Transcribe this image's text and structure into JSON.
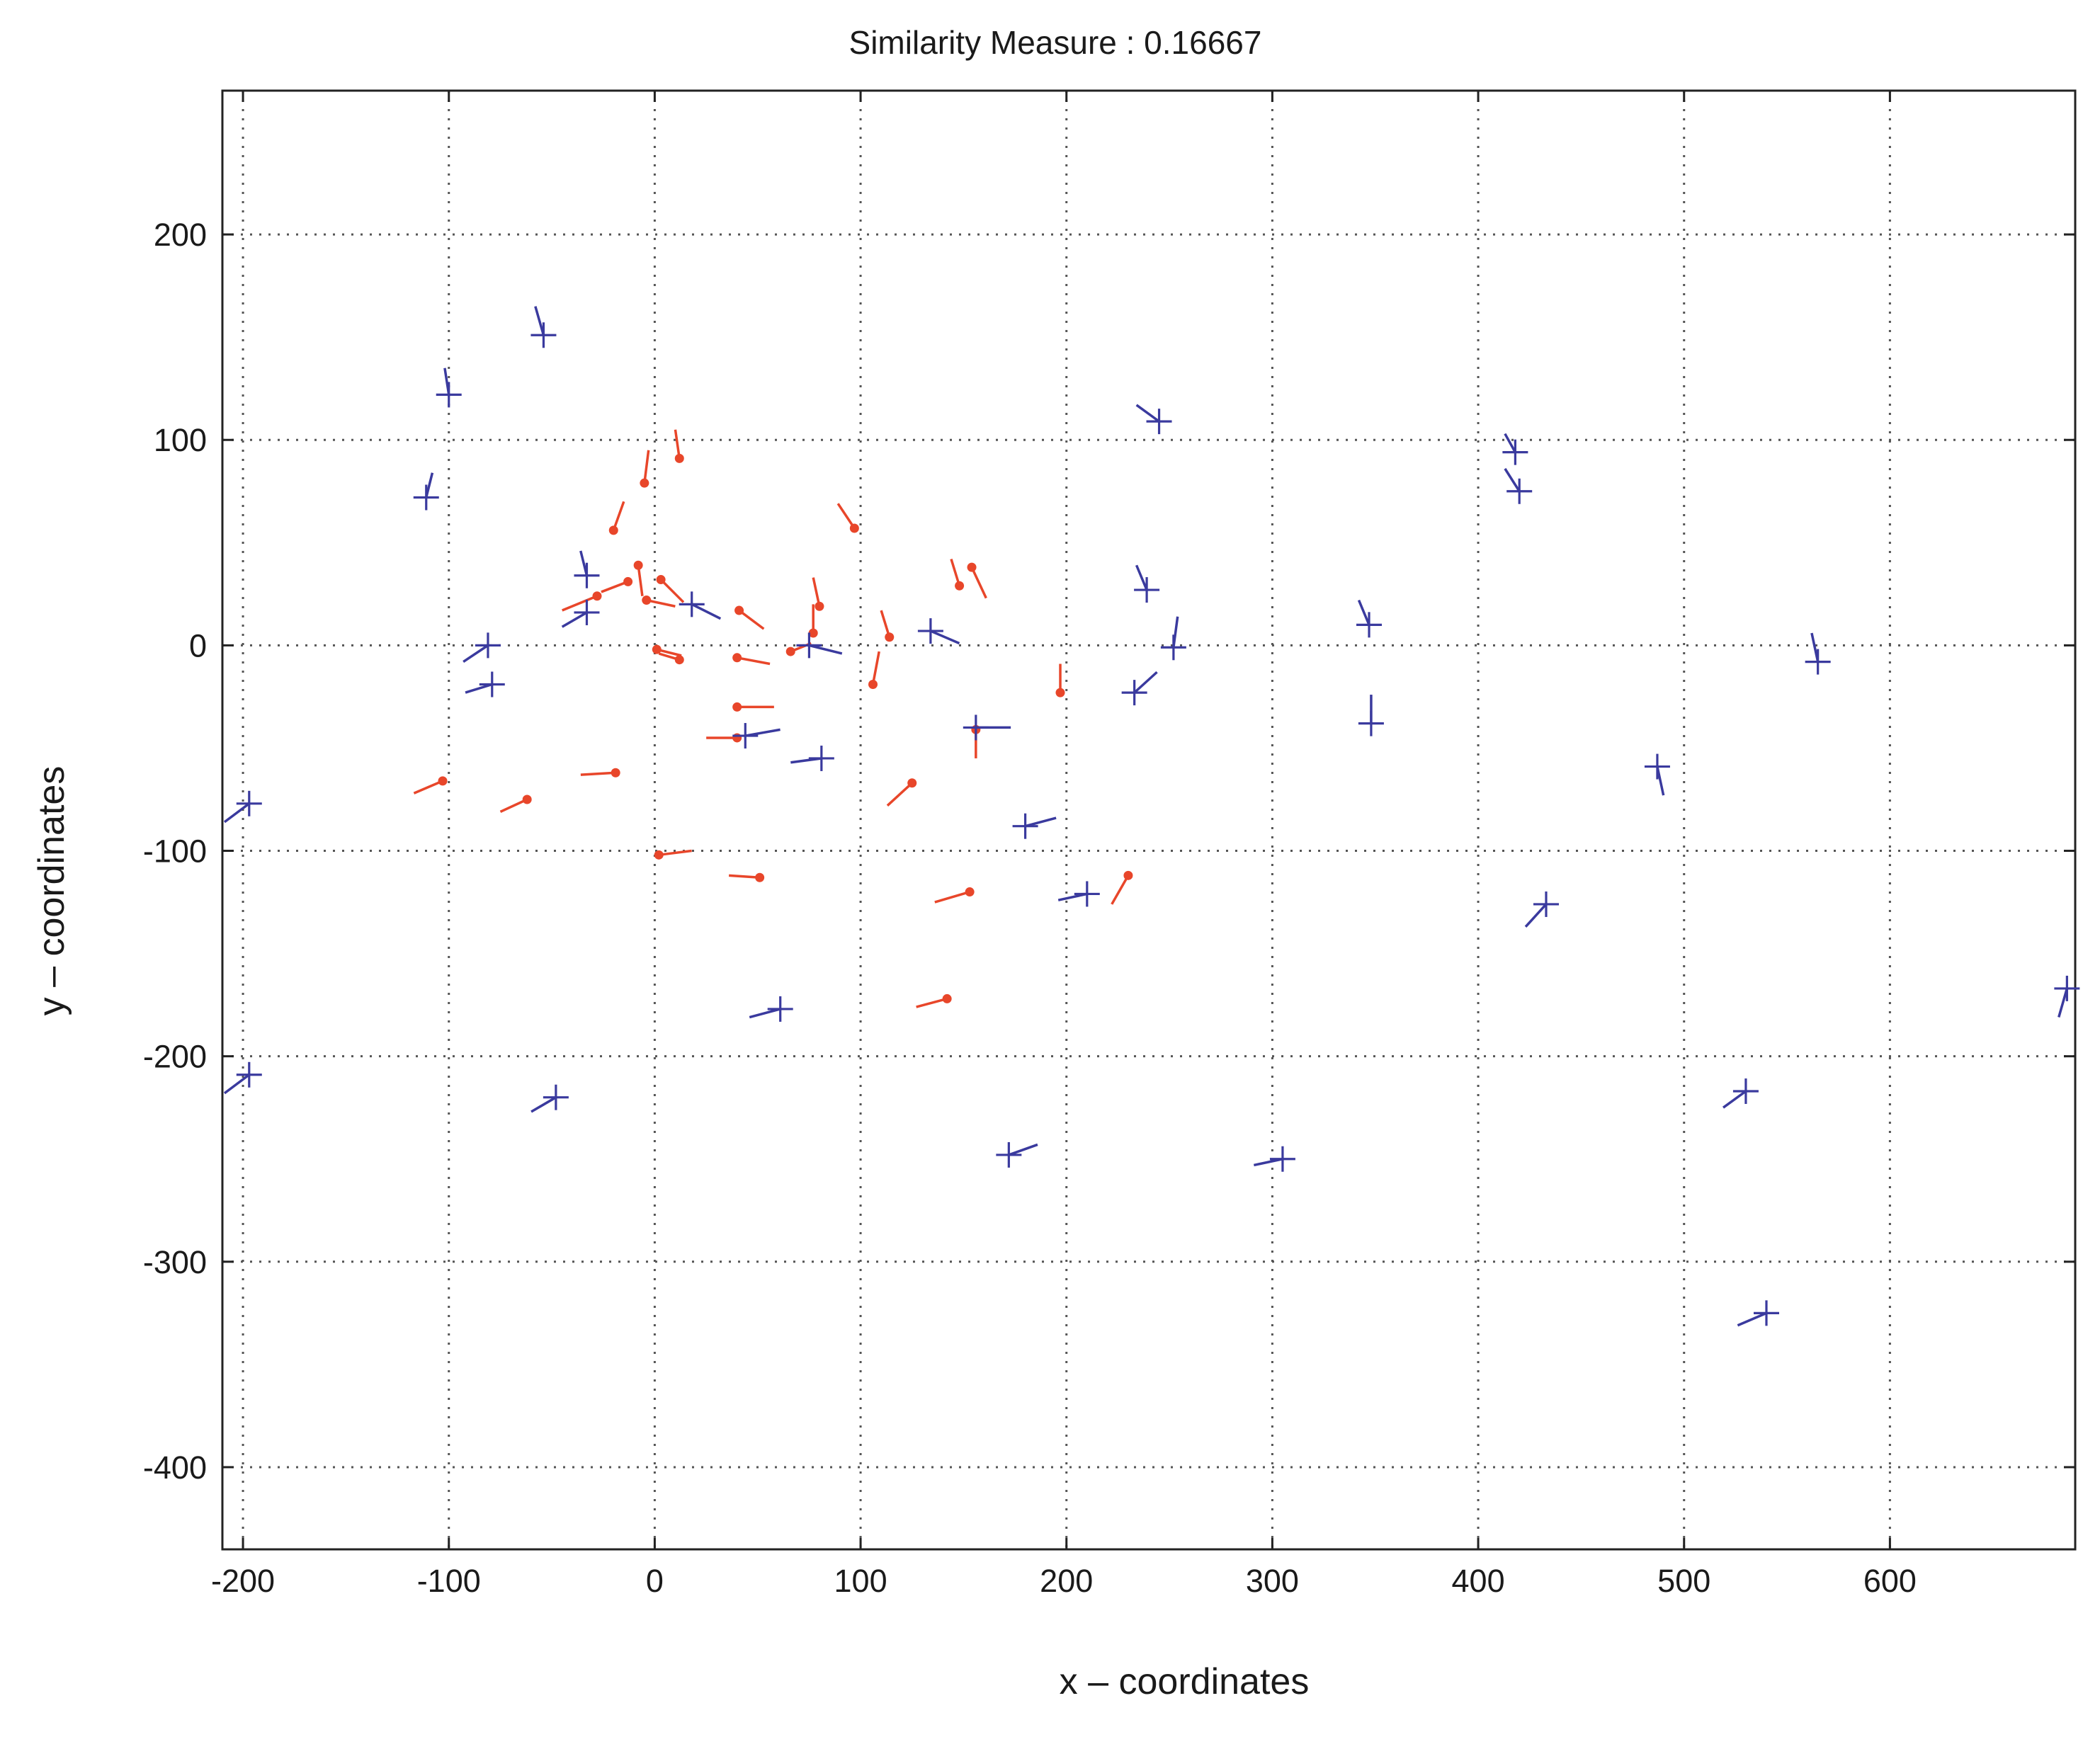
{
  "chart_data": {
    "type": "scatter",
    "title": "Similarity Measure : 0.16667",
    "xlabel": "x – coordinates",
    "ylabel": "y – coordinates",
    "xlim": [
      -210,
      690
    ],
    "ylim": [
      -440,
      270
    ],
    "xticks": [
      -200,
      -100,
      0,
      100,
      200,
      300,
      400,
      500,
      600
    ],
    "yticks": [
      200,
      100,
      0,
      -100,
      -200,
      -300,
      -400
    ],
    "grid": true,
    "colors": {
      "red": "#e8462a",
      "blue": "#3a3a9e"
    },
    "series": [
      {
        "marker": "dot-with-direction",
        "color": "red",
        "points": [
          {
            "x": 12,
            "y": 91,
            "dx": -2,
            "dy": 14
          },
          {
            "x": -5,
            "y": 79,
            "dx": 2,
            "dy": 16
          },
          {
            "x": -20,
            "y": 56,
            "dx": 5,
            "dy": 14
          },
          {
            "x": -8,
            "y": 39,
            "dx": 2,
            "dy": -15
          },
          {
            "x": -13,
            "y": 31,
            "dx": -13,
            "dy": -5
          },
          {
            "x": -28,
            "y": 24,
            "dx": -17,
            "dy": -7
          },
          {
            "x": -4,
            "y": 22,
            "dx": 14,
            "dy": -3
          },
          {
            "x": 3,
            "y": 32,
            "dx": 11,
            "dy": -11
          },
          {
            "x": 97,
            "y": 57,
            "dx": -8,
            "dy": 12
          },
          {
            "x": 80,
            "y": 19,
            "dx": -3,
            "dy": 14
          },
          {
            "x": 77,
            "y": 6,
            "dx": 0,
            "dy": 14
          },
          {
            "x": 41,
            "y": 17,
            "dx": 12,
            "dy": -9
          },
          {
            "x": 148,
            "y": 29,
            "dx": -4,
            "dy": 13
          },
          {
            "x": 154,
            "y": 38,
            "dx": 7,
            "dy": -15
          },
          {
            "x": 114,
            "y": 4,
            "dx": -4,
            "dy": 13
          },
          {
            "x": 66,
            "y": -3,
            "dx": 10,
            "dy": 4
          },
          {
            "x": 40,
            "y": -6,
            "dx": 16,
            "dy": -3
          },
          {
            "x": 1,
            "y": -2,
            "dx": 12,
            "dy": -3
          },
          {
            "x": 12,
            "y": -7,
            "dx": -10,
            "dy": 3
          },
          {
            "x": 106,
            "y": -19,
            "dx": 3,
            "dy": 16
          },
          {
            "x": 197,
            "y": -23,
            "dx": 0,
            "dy": 14
          },
          {
            "x": 40,
            "y": -30,
            "dx": 18,
            "dy": 0
          },
          {
            "x": 156,
            "y": -41,
            "dx": 0,
            "dy": -14
          },
          {
            "x": 40,
            "y": -45,
            "dx": -15,
            "dy": 0
          },
          {
            "x": -103,
            "y": -66,
            "dx": -14,
            "dy": -6
          },
          {
            "x": -62,
            "y": -75,
            "dx": -13,
            "dy": -6
          },
          {
            "x": -19,
            "y": -62,
            "dx": -17,
            "dy": -1
          },
          {
            "x": 125,
            "y": -67,
            "dx": -12,
            "dy": -11
          },
          {
            "x": 2,
            "y": -102,
            "dx": 16,
            "dy": 2
          },
          {
            "x": 51,
            "y": -113,
            "dx": -15,
            "dy": 1
          },
          {
            "x": 153,
            "y": -120,
            "dx": -17,
            "dy": -5
          },
          {
            "x": 230,
            "y": -112,
            "dx": -8,
            "dy": -14
          },
          {
            "x": 142,
            "y": -172,
            "dx": -15,
            "dy": -4
          }
        ]
      },
      {
        "marker": "plus-with-direction",
        "color": "blue",
        "points": [
          {
            "x": -54,
            "y": 151,
            "dx": -4,
            "dy": 14
          },
          {
            "x": -100,
            "y": 122,
            "dx": -2,
            "dy": 13
          },
          {
            "x": -111,
            "y": 72,
            "dx": 3,
            "dy": 12
          },
          {
            "x": 245,
            "y": 109,
            "dx": -11,
            "dy": 8
          },
          {
            "x": 418,
            "y": 94,
            "dx": -5,
            "dy": 9
          },
          {
            "x": 420,
            "y": 75,
            "dx": -7,
            "dy": 11
          },
          {
            "x": -33,
            "y": 34,
            "dx": -3,
            "dy": 12
          },
          {
            "x": -33,
            "y": 16,
            "dx": -12,
            "dy": -7
          },
          {
            "x": 18,
            "y": 20,
            "dx": 14,
            "dy": -7
          },
          {
            "x": 239,
            "y": 27,
            "dx": -5,
            "dy": 12
          },
          {
            "x": 134,
            "y": 7,
            "dx": 14,
            "dy": -6
          },
          {
            "x": 347,
            "y": 10,
            "dx": -5,
            "dy": 12
          },
          {
            "x": 252,
            "y": -1,
            "dx": 2,
            "dy": 15
          },
          {
            "x": 565,
            "y": -8,
            "dx": -3,
            "dy": 14
          },
          {
            "x": -81,
            "y": 0,
            "dx": -12,
            "dy": -8
          },
          {
            "x": 75,
            "y": 0,
            "dx": 16,
            "dy": -4
          },
          {
            "x": -79,
            "y": -19,
            "dx": -13,
            "dy": -4
          },
          {
            "x": 233,
            "y": -23,
            "dx": 11,
            "dy": 10
          },
          {
            "x": 348,
            "y": -38,
            "dx": 0,
            "dy": 14
          },
          {
            "x": 156,
            "y": -40,
            "dx": 17,
            "dy": 0
          },
          {
            "x": 44,
            "y": -44,
            "dx": 17,
            "dy": 3
          },
          {
            "x": 81,
            "y": -55,
            "dx": -15,
            "dy": -2
          },
          {
            "x": 487,
            "y": -59,
            "dx": 3,
            "dy": -14
          },
          {
            "x": 180,
            "y": -88,
            "dx": 15,
            "dy": 4
          },
          {
            "x": -197,
            "y": -77,
            "dx": -12,
            "dy": -9
          },
          {
            "x": 210,
            "y": -121,
            "dx": -14,
            "dy": -3
          },
          {
            "x": 433,
            "y": -126,
            "dx": -10,
            "dy": -11
          },
          {
            "x": 61,
            "y": -177,
            "dx": -15,
            "dy": -4
          },
          {
            "x": 686,
            "y": -167,
            "dx": -4,
            "dy": -14
          },
          {
            "x": -197,
            "y": -209,
            "dx": -12,
            "dy": -9
          },
          {
            "x": -48,
            "y": -220,
            "dx": -12,
            "dy": -7
          },
          {
            "x": 530,
            "y": -217,
            "dx": -11,
            "dy": -8
          },
          {
            "x": 172,
            "y": -248,
            "dx": 14,
            "dy": 5
          },
          {
            "x": 305,
            "y": -250,
            "dx": -14,
            "dy": -3
          },
          {
            "x": 540,
            "y": -325,
            "dx": -14,
            "dy": -6
          }
        ]
      }
    ]
  }
}
